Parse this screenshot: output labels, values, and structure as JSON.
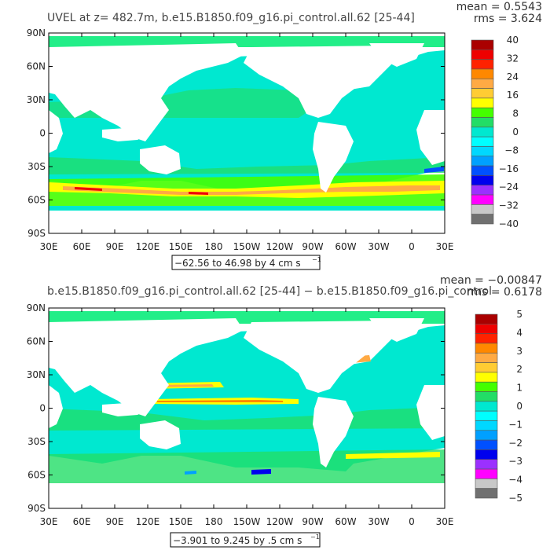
{
  "colors": {
    "land": "#ffffff",
    "frame": "#000000",
    "scale": [
      "#ff00ff",
      "#9b30ff",
      "#0000ee",
      "#0050ff",
      "#00a0ff",
      "#00d8ff",
      "#00ffff",
      "#00e8d0",
      "#22dd66",
      "#44ff00",
      "#ffff00",
      "#ffcc33",
      "#ffaa44",
      "#ff8800",
      "#ff2200",
      "#ee0000",
      "#aa0000"
    ]
  },
  "chart_data": [
    {
      "type": "heatmap",
      "title": "UVEL at z= 482.7m, b.e15.B1850.f09_g16.pi_control.all.62 [25-44]",
      "stats": {
        "mean": "mean = 0.5543",
        "rms": "rms = 3.624"
      },
      "x_ticks": [
        "30E",
        "60E",
        "90E",
        "120E",
        "150E",
        "180",
        "150W",
        "120W",
        "90W",
        "60W",
        "30W",
        "0",
        "30E"
      ],
      "y_ticks": [
        "90N",
        "60N",
        "30N",
        "0",
        "30S",
        "60S",
        "90S"
      ],
      "range_label": "−62.56 to 46.98 by 4 cm s",
      "range_unit_exp": "−1",
      "colorbar_labels": [
        "40",
        "32",
        "24",
        "16",
        "8",
        "0",
        "−8",
        "−16",
        "−24",
        "−32",
        "−40"
      ],
      "colorbar_colors": [
        "#aa0000",
        "#ee0000",
        "#ff2200",
        "#ff8800",
        "#ffaa44",
        "#ffcc33",
        "#ffff00",
        "#44ff00",
        "#22dd66",
        "#00e8d0",
        "#00ffff",
        "#00d8ff",
        "#00a0ff",
        "#0050ff",
        "#0000ee",
        "#9b30ff",
        "#ff00ff",
        "#c8c8c8",
        "#707070"
      ],
      "xlim": [
        "30E",
        "30E"
      ],
      "ylim": [
        "90S",
        "90N"
      ],
      "legend": "right"
    },
    {
      "type": "heatmap",
      "title": "b.e15.B1850.f09_g16.pi_control.all.62 [25-44] − b.e15.B1850.f09_g16.pi_control",
      "stats": {
        "mean": "mean = −0.00847",
        "rms": "rms = 0.6178"
      },
      "x_ticks": [
        "30E",
        "60E",
        "90E",
        "120E",
        "150E",
        "180",
        "150W",
        "120W",
        "90W",
        "60W",
        "30W",
        "0",
        "30E"
      ],
      "y_ticks": [
        "90N",
        "60N",
        "30N",
        "0",
        "30S",
        "60S",
        "90S"
      ],
      "range_label": "−3.901 to 9.245 by .5 cm s",
      "range_unit_exp": "−1",
      "colorbar_labels": [
        "5",
        "4",
        "3",
        "2",
        "1",
        "0",
        "−1",
        "−2",
        "−3",
        "−4",
        "−5"
      ],
      "colorbar_colors": [
        "#aa0000",
        "#ee0000",
        "#ff2200",
        "#ff8800",
        "#ffaa44",
        "#ffcc33",
        "#ffff00",
        "#44ff00",
        "#22dd66",
        "#00e8d0",
        "#00ffff",
        "#00d8ff",
        "#00a0ff",
        "#0050ff",
        "#0000ee",
        "#9b30ff",
        "#ff00ff",
        "#c8c8c8",
        "#707070"
      ],
      "xlim": [
        "30E",
        "30E"
      ],
      "ylim": [
        "90S",
        "90N"
      ],
      "legend": "right"
    }
  ]
}
